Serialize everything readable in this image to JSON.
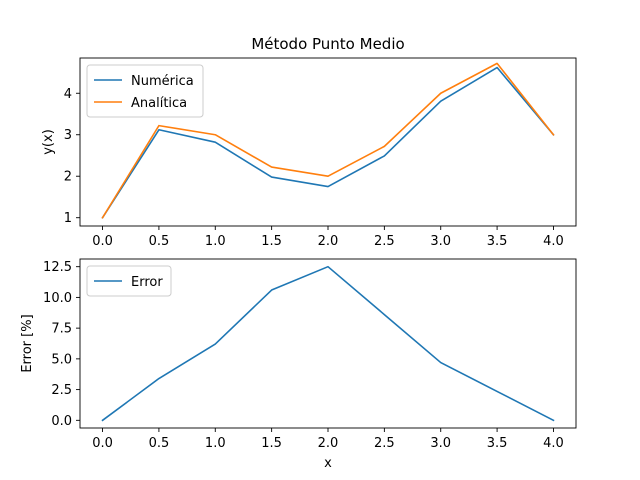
{
  "chart_data": [
    {
      "type": "line",
      "title": "Método Punto Medio",
      "xlabel": "",
      "ylabel": "y(x)",
      "x": [
        0.0,
        0.5,
        1.0,
        1.5,
        2.0,
        2.5,
        3.0,
        3.5,
        4.0
      ],
      "xlim": [
        -0.2,
        4.2
      ],
      "ylim": [
        0.8,
        4.85
      ],
      "xticks": [
        0.0,
        0.5,
        1.0,
        1.5,
        2.0,
        2.5,
        3.0,
        3.5,
        4.0
      ],
      "xtick_labels": [
        "0.0",
        "0.5",
        "1.0",
        "1.5",
        "2.0",
        "2.5",
        "3.0",
        "3.5",
        "4.0"
      ],
      "yticks": [
        1,
        2,
        3,
        4
      ],
      "ytick_labels": [
        "1",
        "2",
        "3",
        "4"
      ],
      "grid": false,
      "legend": "upper left",
      "series": [
        {
          "name": "Numérica",
          "color": "#1f77b4",
          "values": [
            1.0,
            3.12,
            2.82,
            1.98,
            1.75,
            2.49,
            3.81,
            4.62,
            3.0
          ]
        },
        {
          "name": "Analítica",
          "color": "#ff7f0e",
          "values": [
            1.0,
            3.22,
            3.0,
            2.22,
            2.0,
            2.72,
            4.0,
            4.72,
            3.0
          ]
        }
      ]
    },
    {
      "type": "line",
      "title": "",
      "xlabel": "x",
      "ylabel": "Error [%]",
      "x": [
        0.0,
        0.5,
        1.0,
        1.5,
        2.0,
        2.5,
        3.0,
        3.5,
        4.0
      ],
      "xlim": [
        -0.2,
        4.2
      ],
      "ylim": [
        -0.625,
        13.125
      ],
      "xticks": [
        0.0,
        0.5,
        1.0,
        1.5,
        2.0,
        2.5,
        3.0,
        3.5,
        4.0
      ],
      "xtick_labels": [
        "0.0",
        "0.5",
        "1.0",
        "1.5",
        "2.0",
        "2.5",
        "3.0",
        "3.5",
        "4.0"
      ],
      "yticks": [
        0.0,
        2.5,
        5.0,
        7.5,
        10.0,
        12.5
      ],
      "ytick_labels": [
        "0.0",
        "2.5",
        "5.0",
        "7.5",
        "10.0",
        "12.5"
      ],
      "grid": false,
      "legend": "upper left",
      "series": [
        {
          "name": "Error",
          "color": "#1f77b4",
          "values": [
            0.0,
            3.4,
            6.2,
            10.6,
            12.5,
            8.6,
            4.7,
            2.35,
            0.0
          ]
        }
      ]
    }
  ]
}
